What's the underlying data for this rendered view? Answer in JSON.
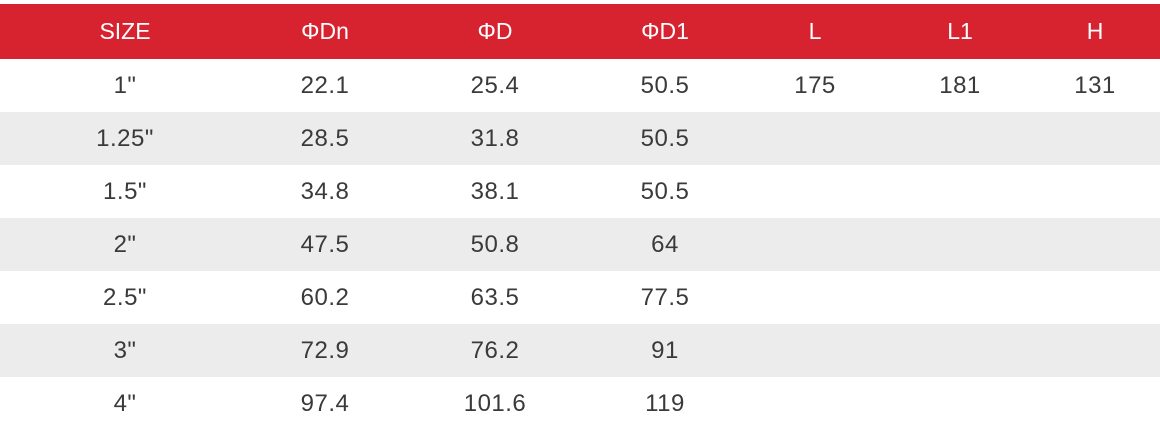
{
  "table": {
    "headers": [
      "SIZE",
      "ΦDn",
      "ΦD",
      "ΦD1",
      "L",
      "L1",
      "H"
    ],
    "rows": [
      [
        "1\"",
        "22.1",
        "25.4",
        "50.5",
        "175",
        "181",
        "131"
      ],
      [
        "1.25\"",
        "28.5",
        "31.8",
        "50.5",
        "",
        "",
        ""
      ],
      [
        "1.5\"",
        "34.8",
        "38.1",
        "50.5",
        "",
        "",
        ""
      ],
      [
        "2\"",
        "47.5",
        "50.8",
        "64",
        "",
        "",
        ""
      ],
      [
        "2.5\"",
        "60.2",
        "63.5",
        "77.5",
        "",
        "",
        ""
      ],
      [
        "3\"",
        "72.9",
        "76.2",
        "91",
        "",
        "",
        ""
      ],
      [
        "4\"",
        "97.4",
        "101.6",
        "119",
        "",
        "",
        ""
      ]
    ]
  },
  "colors": {
    "header_bg": "#d7232f",
    "header_text": "#ffffff",
    "alt_row_bg": "#ececec",
    "body_text": "#3a3a3a"
  }
}
